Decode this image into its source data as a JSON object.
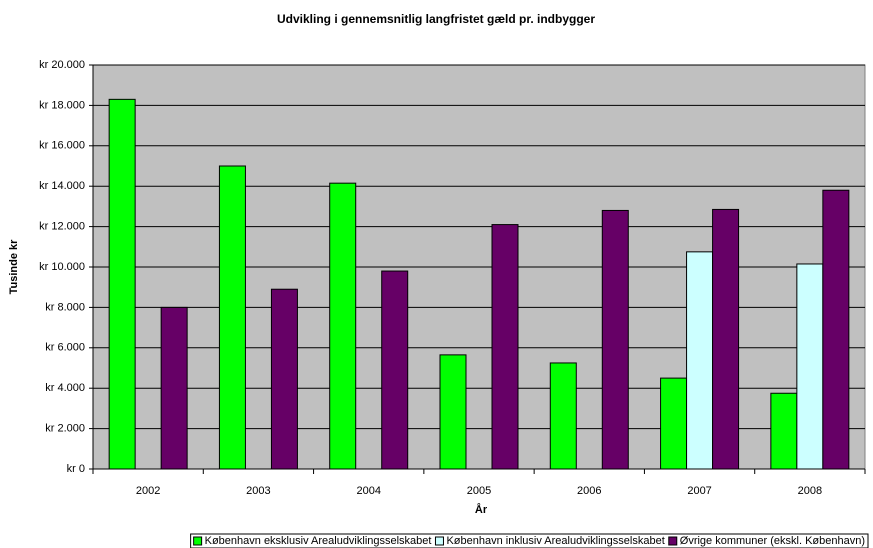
{
  "chart_data": {
    "type": "bar",
    "title": "Udvikling i gennemsnitlig langfristet gæld pr. indbygger",
    "x_label": "År",
    "y_label": "Tusinde kr",
    "categories": [
      "2002",
      "2003",
      "2004",
      "2005",
      "2006",
      "2007",
      "2008"
    ],
    "series": [
      {
        "name": "København eksklusiv Arealudviklingsselskabet",
        "color": "#00ff00",
        "values": [
          18300,
          15000,
          14150,
          5650,
          5250,
          4500,
          3750
        ]
      },
      {
        "name": "København inklusiv Arealudviklingsselskabet",
        "color": "#ccffff",
        "values": [
          null,
          null,
          null,
          null,
          null,
          10750,
          10150
        ]
      },
      {
        "name": "Øvrige kommuner (ekskl. København)",
        "color": "#660066",
        "values": [
          8000,
          8900,
          9800,
          12100,
          12800,
          12850,
          13800
        ]
      }
    ],
    "ylim": [
      0,
      20000
    ],
    "yticks": [
      {
        "value": 0,
        "label": "kr 0"
      },
      {
        "value": 2000,
        "label": "kr 2.000"
      },
      {
        "value": 4000,
        "label": "kr 4.000"
      },
      {
        "value": 6000,
        "label": "kr 6.000"
      },
      {
        "value": 8000,
        "label": "kr 8.000"
      },
      {
        "value": 10000,
        "label": "kr 10.000"
      },
      {
        "value": 12000,
        "label": "kr 12.000"
      },
      {
        "value": 14000,
        "label": "kr 14.000"
      },
      {
        "value": 16000,
        "label": "kr 16.000"
      },
      {
        "value": 18000,
        "label": "kr 18.000"
      },
      {
        "value": 20000,
        "label": "kr 20.000"
      }
    ],
    "grid": true,
    "plot_background": "#c0c0c0",
    "legend": "bottom"
  }
}
